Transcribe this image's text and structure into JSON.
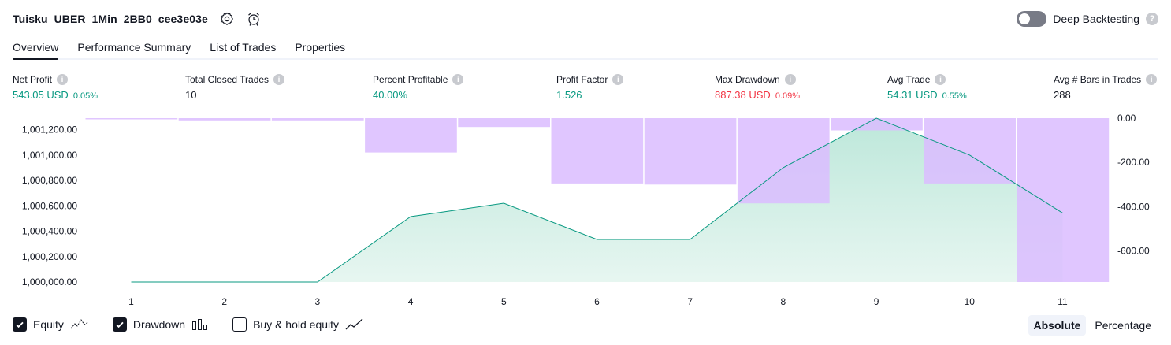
{
  "header": {
    "title": "Tuisku_UBER_1Min_2BB0_cee3e03e",
    "settings_icon": "gear-icon",
    "alert_icon": "alarm-clock-plus-icon",
    "deep_backtesting_label": "Deep Backtesting",
    "deep_backtesting_enabled": false,
    "help_glyph": "?"
  },
  "tabs": [
    {
      "label": "Overview",
      "active": true
    },
    {
      "label": "Performance Summary",
      "active": false
    },
    {
      "label": "List of Trades",
      "active": false
    },
    {
      "label": "Properties",
      "active": false
    }
  ],
  "info_glyph": "i",
  "metrics": {
    "net_profit": {
      "label": "Net Profit",
      "value": "543.05 USD",
      "pct": "0.05%"
    },
    "total_closed_trades": {
      "label": "Total Closed Trades",
      "value": "10"
    },
    "percent_profitable": {
      "label": "Percent Profitable",
      "value": "40.00%"
    },
    "profit_factor": {
      "label": "Profit Factor",
      "value": "1.526"
    },
    "max_drawdown": {
      "label": "Max Drawdown",
      "value": "887.38 USD",
      "pct": "0.09%"
    },
    "avg_trade": {
      "label": "Avg Trade",
      "value": "54.31 USD",
      "pct": "0.55%"
    },
    "avg_bars": {
      "label": "Avg # Bars in Trades",
      "value": "288"
    }
  },
  "chart_data": {
    "type": "line+bar",
    "x": [
      1,
      2,
      3,
      4,
      5,
      6,
      7,
      8,
      9,
      10,
      11
    ],
    "left_axis": {
      "ticks": [
        "1,001,200.00",
        "1,001,000.00",
        "1,000,800.00",
        "1,000,600.00",
        "1,000,400.00",
        "1,000,200.00",
        "1,000,000.00"
      ],
      "tick_values": [
        1001200,
        1001000,
        1000800,
        1000600,
        1000400,
        1000200,
        1000000
      ],
      "range": [
        1000000,
        1001290
      ]
    },
    "right_axis": {
      "ticks": [
        "0.00",
        "-200.00",
        "-400.00",
        "-600.00"
      ],
      "tick_values": [
        0,
        -200,
        -400,
        -600
      ],
      "range": [
        -740,
        0
      ]
    },
    "series": [
      {
        "name": "Equity",
        "axis": "left",
        "color": "#089981",
        "values": [
          1000000,
          1000000,
          1000000,
          1000515,
          1000620,
          1000335,
          1000335,
          1000900,
          1001290,
          1001000,
          1000543
        ]
      },
      {
        "name": "Drawdown",
        "axis": "right",
        "color": "#dbbcff",
        "values": [
          -3,
          -10,
          -10,
          -155,
          -40,
          -295,
          -300,
          -385,
          -55,
          -295,
          -740
        ]
      }
    ]
  },
  "legend": {
    "equity": {
      "label": "Equity",
      "checked": true
    },
    "drawdown": {
      "label": "Drawdown",
      "checked": true
    },
    "buy_hold": {
      "label": "Buy & hold equity",
      "checked": false
    }
  },
  "modes": {
    "absolute": "Absolute",
    "percentage": "Percentage",
    "active": "absolute"
  },
  "colors": {
    "profit": "#089981",
    "loss": "#f23645",
    "drawdown_bar": "#dbbcff",
    "equity_fill": "#cdeee4",
    "text": "#131722"
  }
}
